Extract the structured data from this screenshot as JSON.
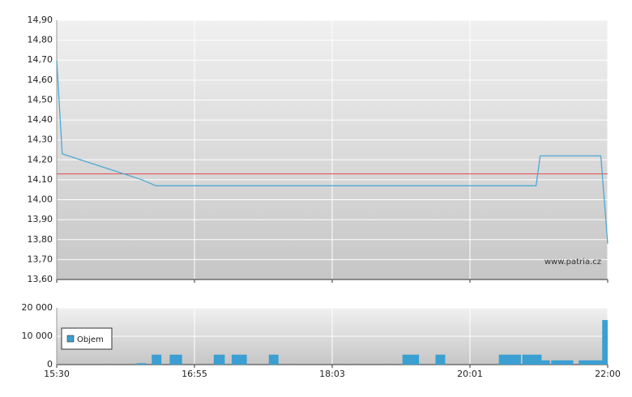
{
  "chart_data": [
    {
      "type": "line",
      "annotation": "www.patria.cz",
      "x": [
        0,
        0.04,
        0.62,
        0.72,
        3.48,
        3.51,
        3.95,
        4.0
      ],
      "series": [
        {
          "color": "#4ea8d2",
          "values": [
            14.7,
            14.23,
            14.1,
            14.07,
            14.07,
            14.22,
            14.22,
            13.78
          ]
        }
      ],
      "reference_line": {
        "value": 14.13,
        "color": "#e05a5a"
      },
      "xlim": [
        0,
        4
      ],
      "ylim": [
        13.6,
        14.9
      ],
      "yticks": [
        {
          "value": 13.6,
          "label": "13,60"
        },
        {
          "value": 13.7,
          "label": "13,70"
        },
        {
          "value": 13.8,
          "label": "13,80"
        },
        {
          "value": 13.9,
          "label": "13,90"
        },
        {
          "value": 14.0,
          "label": "14,00"
        },
        {
          "value": 14.1,
          "label": "14,10"
        },
        {
          "value": 14.2,
          "label": "14,20"
        },
        {
          "value": 14.3,
          "label": "14,30"
        },
        {
          "value": 14.4,
          "label": "14,40"
        },
        {
          "value": 14.5,
          "label": "14,50"
        },
        {
          "value": 14.6,
          "label": "14,60"
        },
        {
          "value": 14.7,
          "label": "14,70"
        },
        {
          "value": 14.8,
          "label": "14,80"
        },
        {
          "value": 14.9,
          "label": "14,90"
        }
      ],
      "grid": true
    },
    {
      "type": "bar",
      "x_start": [
        0.58,
        0.69,
        0.82,
        1.14,
        1.27,
        1.54,
        2.51,
        2.75,
        3.21,
        3.38,
        3.52,
        3.59,
        3.79,
        3.96
      ],
      "x_end": [
        0.65,
        0.76,
        0.91,
        1.22,
        1.38,
        1.61,
        2.63,
        2.82,
        3.37,
        3.52,
        3.58,
        3.75,
        3.96,
        4.0
      ],
      "series": [
        {
          "name": "Objem",
          "color": "#3b9fd1",
          "values": [
            500,
            3500,
            3500,
            3500,
            3500,
            3500,
            3500,
            3500,
            3500,
            3500,
            1500,
            1500,
            1500,
            15700
          ]
        }
      ],
      "xlim": [
        0,
        4
      ],
      "xticks": [
        {
          "value": 0,
          "label": "15:30"
        },
        {
          "value": 1,
          "label": "16:55"
        },
        {
          "value": 2,
          "label": "18:03"
        },
        {
          "value": 3,
          "label": "20:01"
        },
        {
          "value": 4,
          "label": "22:00"
        }
      ],
      "ylim": [
        0,
        20000
      ],
      "yticks": [
        0,
        {
          "value": 10000,
          "label": "10 000"
        },
        {
          "value": 20000,
          "label": "20 000"
        }
      ],
      "grid": true,
      "legend": "left"
    }
  ]
}
